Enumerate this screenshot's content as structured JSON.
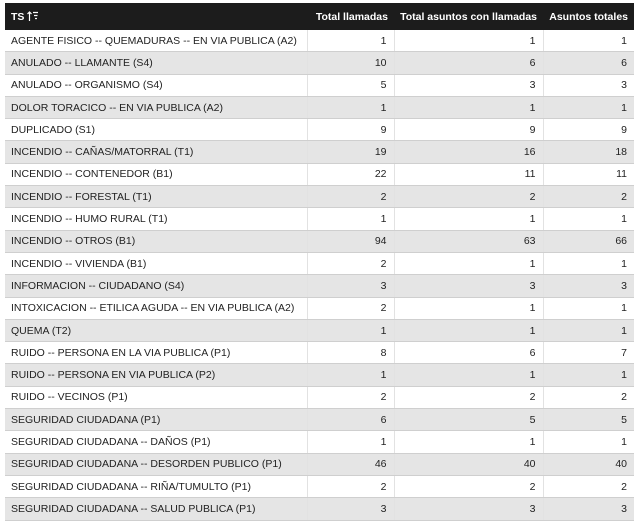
{
  "table": {
    "header": [
      "TS",
      "Total llamadas",
      "Total asuntos con llamadas",
      "Asuntos totales"
    ],
    "rows": [
      [
        "AGENTE FISICO -- QUEMADURAS -- EN VIA PUBLICA (A2)",
        1,
        1,
        1
      ],
      [
        "ANULADO -- LLAMANTE (S4)",
        10,
        6,
        6
      ],
      [
        "ANULADO -- ORGANISMO (S4)",
        5,
        3,
        3
      ],
      [
        "DOLOR TORACICO -- EN VIA PUBLICA (A2)",
        1,
        1,
        1
      ],
      [
        "DUPLICADO (S1)",
        9,
        9,
        9
      ],
      [
        "INCENDIO -- CAÑAS/MATORRAL (T1)",
        19,
        16,
        18
      ],
      [
        "INCENDIO -- CONTENEDOR (B1)",
        22,
        11,
        11
      ],
      [
        "INCENDIO -- FORESTAL (T1)",
        2,
        2,
        2
      ],
      [
        "INCENDIO -- HUMO RURAL (T1)",
        1,
        1,
        1
      ],
      [
        "INCENDIO -- OTROS (B1)",
        94,
        63,
        66
      ],
      [
        "INCENDIO -- VIVIENDA (B1)",
        2,
        1,
        1
      ],
      [
        "INFORMACION -- CIUDADANO (S4)",
        3,
        3,
        3
      ],
      [
        "INTOXICACION -- ETILICA AGUDA -- EN VIA PUBLICA (A2)",
        2,
        1,
        1
      ],
      [
        "QUEMA (T2)",
        1,
        1,
        1
      ],
      [
        "RUIDO -- PERSONA EN LA VIA PUBLICA (P1)",
        8,
        6,
        7
      ],
      [
        "RUIDO -- PERSONA EN VIA PUBLICA (P2)",
        1,
        1,
        1
      ],
      [
        "RUIDO -- VECINOS (P1)",
        2,
        2,
        2
      ],
      [
        "SEGURIDAD CIUDADANA (P1)",
        6,
        5,
        5
      ],
      [
        "SEGURIDAD CIUDADANA -- DAÑOS (P1)",
        1,
        1,
        1
      ],
      [
        "SEGURIDAD CIUDADANA -- DESORDEN PUBLICO (P1)",
        46,
        40,
        40
      ],
      [
        "SEGURIDAD CIUDADANA -- RIÑA/TUMULTO (P1)",
        2,
        2,
        2
      ],
      [
        "SEGURIDAD CIUDADANA -- SALUD PUBLICA (P1)",
        3,
        3,
        3
      ]
    ]
  }
}
